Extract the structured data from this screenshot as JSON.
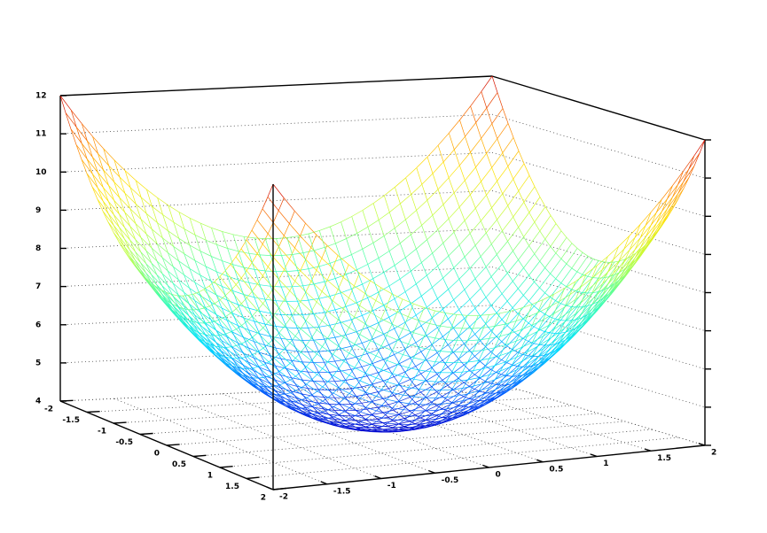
{
  "chart_data": {
    "type": "surface",
    "function": "z = 4 + x^2 + y^2",
    "x": [
      -2,
      -1.8,
      -1.6,
      -1.4,
      -1.2,
      -1,
      -0.8,
      -0.6,
      -0.4,
      -0.2,
      0,
      0.2,
      0.4,
      0.6,
      0.8,
      1,
      1.2,
      1.4,
      1.6,
      1.8,
      2
    ],
    "y": [
      -2,
      -1.8,
      -1.6,
      -1.4,
      -1.2,
      -1,
      -0.8,
      -0.6,
      -0.4,
      -0.2,
      0,
      0.2,
      0.4,
      0.6,
      0.8,
      1,
      1.2,
      1.4,
      1.6,
      1.8,
      2
    ],
    "mesh_resolution": 41,
    "xlim": [
      -2,
      2
    ],
    "ylim": [
      -2,
      2
    ],
    "zlim": [
      4,
      12
    ],
    "x_ticks": [
      "-2",
      "-1.5",
      "-1",
      "-0.5",
      "0",
      "0.5",
      "1",
      "1.5",
      "2"
    ],
    "y_ticks": [
      "-2",
      "-1.5",
      "-1",
      "-0.5",
      "0",
      "0.5",
      "1",
      "1.5",
      "2"
    ],
    "z_ticks": [
      "4",
      "5",
      "6",
      "7",
      "8",
      "9",
      "10",
      "11",
      "12"
    ],
    "colormap": "jet",
    "colormap_stops": [
      "#0000cc",
      "#0060ff",
      "#00e0ff",
      "#40ffb0",
      "#c0ff40",
      "#ffe000",
      "#ff8000",
      "#d00000"
    ],
    "grid": true,
    "box": true,
    "title": "",
    "xlabel": "",
    "ylabel": "",
    "zlabel": ""
  }
}
